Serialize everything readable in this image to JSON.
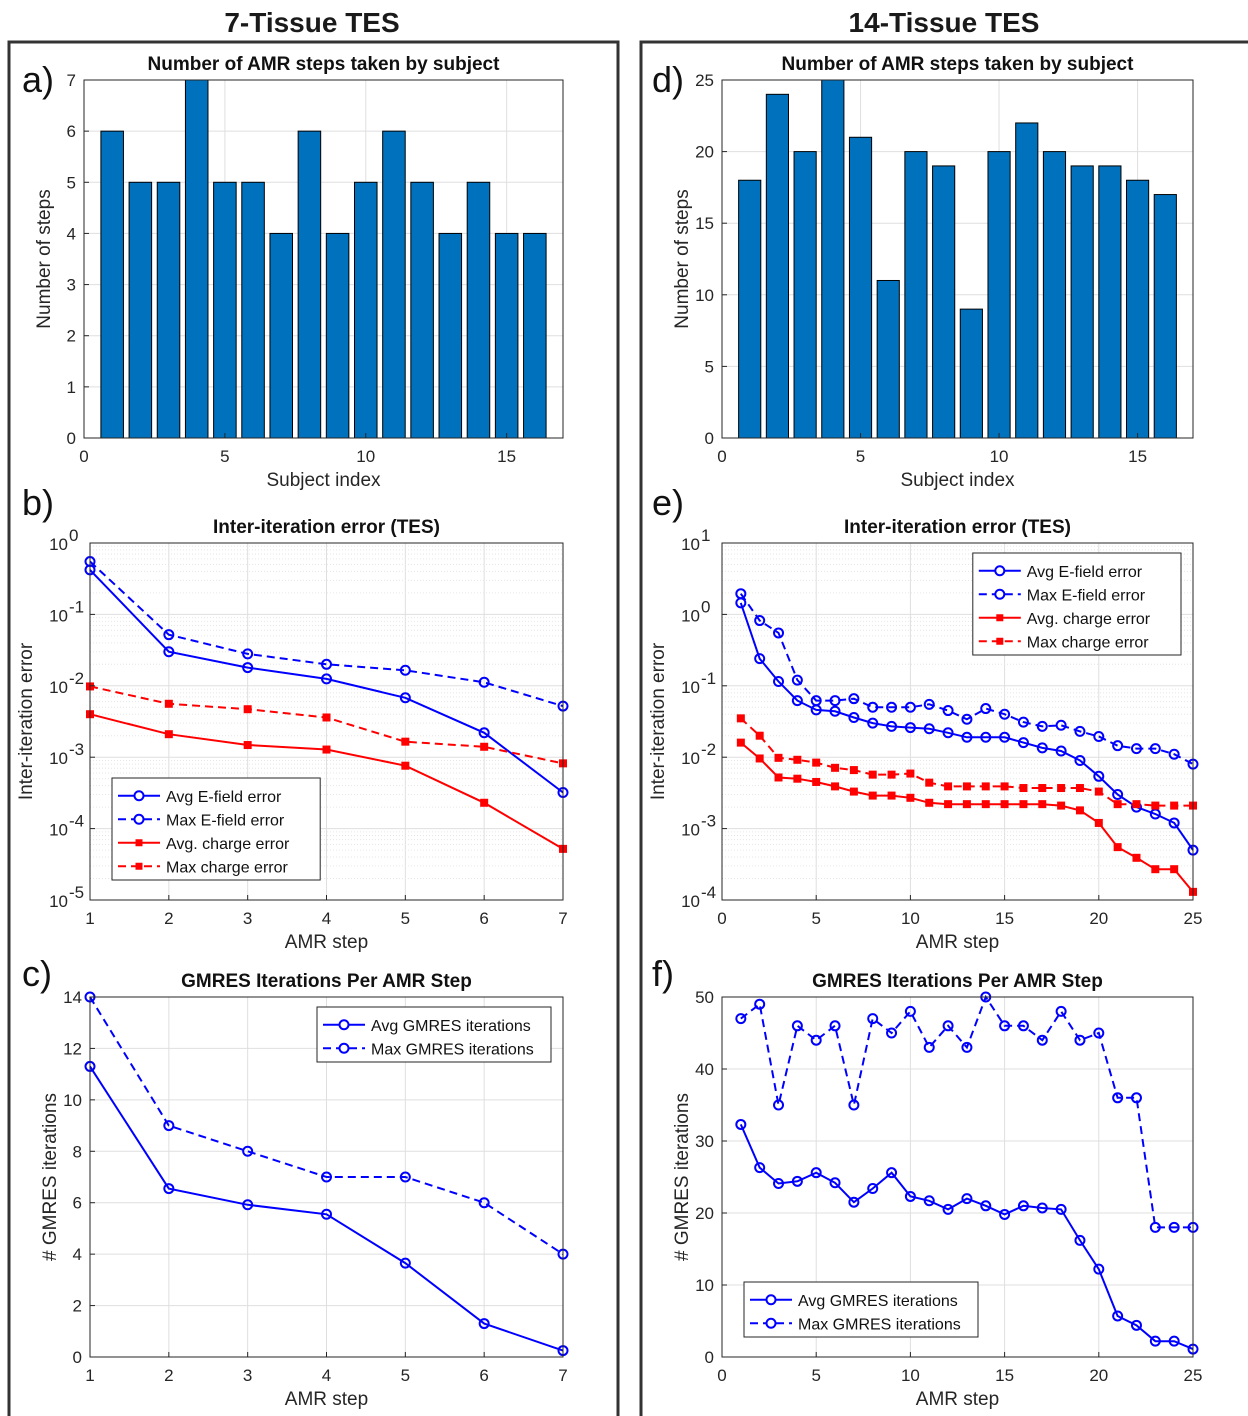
{
  "columns": [
    {
      "title": "7-Tissue TES"
    },
    {
      "title": "14-Tissue TES"
    }
  ],
  "colors": {
    "bar": "#0072bd",
    "blue": "#0000ff",
    "red": "#ff0000",
    "grid": "#dfdfdf",
    "axis": "#262626",
    "frame": "#333333"
  },
  "chart_data": [
    {
      "panel": "a)",
      "type": "bar",
      "title": "Number of AMR steps taken by subject",
      "xlabel": "Subject index",
      "ylabel": "Number of steps",
      "x": [
        1,
        2,
        3,
        4,
        5,
        6,
        7,
        8,
        9,
        10,
        11,
        12,
        13,
        14,
        15,
        16
      ],
      "values": [
        6,
        5,
        5,
        7,
        5,
        5,
        4,
        6,
        4,
        5,
        6,
        5,
        4,
        5,
        4,
        4
      ],
      "xlim": [
        0,
        17
      ],
      "ylim": [
        0,
        7
      ],
      "xticks": [
        0,
        5,
        10,
        15
      ],
      "yticks": [
        0,
        1,
        2,
        3,
        4,
        5,
        6,
        7
      ],
      "yscale": "linear",
      "grid": true
    },
    {
      "panel": "b)",
      "type": "line",
      "title": "Inter-iteration error (TES)",
      "xlabel": "AMR step",
      "ylabel": "Inter-iteration error",
      "xlim": [
        1,
        7
      ],
      "ylim": [
        1e-05,
        1
      ],
      "xticks": [
        1,
        2,
        3,
        4,
        5,
        6,
        7
      ],
      "yticks": [
        1e-05,
        0.0001,
        0.001,
        0.01,
        0.1,
        1
      ],
      "ytick_exponents": [
        "-5",
        "-4",
        "-3",
        "-2",
        "-1",
        "0"
      ],
      "yscale": "log",
      "grid": true,
      "legend": "bottom-left",
      "series": [
        {
          "name": "Avg E-field error",
          "color": "#0000ff",
          "dash": false,
          "marker": "circle",
          "x": [
            1,
            2,
            3,
            4,
            5,
            6,
            7
          ],
          "values": [
            0.42,
            0.03,
            0.018,
            0.0125,
            0.0068,
            0.0022,
            0.00032
          ]
        },
        {
          "name": "Max E-field error",
          "color": "#0000ff",
          "dash": true,
          "marker": "circle",
          "x": [
            1,
            2,
            3,
            4,
            5,
            6,
            7
          ],
          "values": [
            0.55,
            0.052,
            0.028,
            0.02,
            0.0165,
            0.0112,
            0.0052
          ]
        },
        {
          "name": "Avg. charge error",
          "color": "#ff0000",
          "dash": false,
          "marker": "square",
          "x": [
            1,
            2,
            3,
            4,
            5,
            6,
            7
          ],
          "values": [
            0.004,
            0.0021,
            0.00148,
            0.00128,
            0.00076,
            0.00023,
            5.2e-05
          ]
        },
        {
          "name": "Max charge error",
          "color": "#ff0000",
          "dash": true,
          "marker": "square",
          "x": [
            1,
            2,
            3,
            4,
            5,
            6,
            7
          ],
          "values": [
            0.0098,
            0.0056,
            0.0047,
            0.0036,
            0.00165,
            0.0014,
            0.00082
          ]
        }
      ]
    },
    {
      "panel": "c)",
      "type": "line",
      "title": "GMRES Iterations Per AMR Step",
      "xlabel": "AMR step",
      "ylabel": "# GMRES iterations",
      "xlim": [
        1,
        7
      ],
      "ylim": [
        0,
        14
      ],
      "xticks": [
        1,
        2,
        3,
        4,
        5,
        6,
        7
      ],
      "yticks": [
        0,
        2,
        4,
        6,
        8,
        10,
        12,
        14
      ],
      "yscale": "linear",
      "grid": true,
      "legend": "top-right",
      "series": [
        {
          "name": "Avg GMRES iterations",
          "color": "#0000ff",
          "dash": false,
          "marker": "circle",
          "x": [
            1,
            2,
            3,
            4,
            5,
            6,
            7
          ],
          "values": [
            11.3,
            6.55,
            5.92,
            5.55,
            3.65,
            1.3,
            0.25
          ]
        },
        {
          "name": "Max GMRES iterations",
          "color": "#0000ff",
          "dash": true,
          "marker": "circle",
          "x": [
            1,
            2,
            3,
            4,
            5,
            6,
            7
          ],
          "values": [
            14,
            9,
            8,
            7,
            7,
            6,
            4
          ]
        }
      ]
    },
    {
      "panel": "d)",
      "type": "bar",
      "title": "Number of AMR steps taken by subject",
      "xlabel": "Subject index",
      "ylabel": "Number of steps",
      "x": [
        1,
        2,
        3,
        4,
        5,
        6,
        7,
        8,
        9,
        10,
        11,
        12,
        13,
        14,
        15,
        16
      ],
      "values": [
        18,
        24,
        20,
        25,
        21,
        11,
        20,
        19,
        9,
        20,
        22,
        20,
        19,
        19,
        18,
        17
      ],
      "xlim": [
        0,
        17
      ],
      "ylim": [
        0,
        25
      ],
      "xticks": [
        0,
        5,
        10,
        15
      ],
      "yticks": [
        0,
        5,
        10,
        15,
        20,
        25
      ],
      "yscale": "linear",
      "grid": true
    },
    {
      "panel": "e)",
      "type": "line",
      "title": "Inter-iteration error (TES)",
      "xlabel": "AMR step",
      "ylabel": "Inter-iteration error",
      "xlim": [
        0,
        25
      ],
      "ylim": [
        0.0001,
        10
      ],
      "xticks": [
        0,
        5,
        10,
        15,
        20,
        25
      ],
      "yticks": [
        0.0001,
        0.001,
        0.01,
        0.1,
        1,
        10
      ],
      "ytick_exponents": [
        "-4",
        "-3",
        "-2",
        "-1",
        "0",
        "1"
      ],
      "yscale": "log",
      "grid": true,
      "legend": "top-right",
      "series": [
        {
          "name": "Avg E-field error",
          "color": "#0000ff",
          "dash": false,
          "marker": "circle",
          "x": [
            1,
            2,
            3,
            4,
            5,
            6,
            7,
            8,
            9,
            10,
            11,
            12,
            13,
            14,
            15,
            16,
            17,
            18,
            19,
            20,
            21,
            22,
            23,
            24,
            25
          ],
          "values": [
            1.45,
            0.24,
            0.115,
            0.062,
            0.046,
            0.044,
            0.036,
            0.03,
            0.027,
            0.026,
            0.025,
            0.022,
            0.019,
            0.019,
            0.019,
            0.016,
            0.0135,
            0.0122,
            0.009,
            0.0054,
            0.003,
            0.002,
            0.0016,
            0.0012,
            0.0005
          ]
        },
        {
          "name": "Max E-field error",
          "color": "#0000ff",
          "dash": true,
          "marker": "circle",
          "x": [
            1,
            2,
            3,
            4,
            5,
            6,
            7,
            8,
            9,
            10,
            11,
            12,
            13,
            14,
            15,
            16,
            17,
            18,
            19,
            20,
            21,
            22,
            23,
            24,
            25
          ],
          "values": [
            1.95,
            0.82,
            0.55,
            0.12,
            0.062,
            0.062,
            0.066,
            0.05,
            0.05,
            0.05,
            0.055,
            0.045,
            0.034,
            0.048,
            0.04,
            0.031,
            0.027,
            0.028,
            0.023,
            0.0195,
            0.0145,
            0.0132,
            0.0132,
            0.011,
            0.008
          ]
        },
        {
          "name": "Avg. charge error",
          "color": "#ff0000",
          "dash": false,
          "marker": "square",
          "x": [
            1,
            2,
            3,
            4,
            5,
            6,
            7,
            8,
            9,
            10,
            11,
            12,
            13,
            14,
            15,
            16,
            17,
            18,
            19,
            20,
            21,
            22,
            23,
            24,
            25
          ],
          "values": [
            0.016,
            0.0096,
            0.0052,
            0.005,
            0.0045,
            0.0039,
            0.0033,
            0.0029,
            0.0029,
            0.0027,
            0.0023,
            0.0022,
            0.0022,
            0.0022,
            0.0022,
            0.0022,
            0.0022,
            0.0021,
            0.0018,
            0.0012,
            0.00055,
            0.00039,
            0.00027,
            0.00027,
            0.00013
          ]
        },
        {
          "name": "Max charge error",
          "color": "#ff0000",
          "dash": true,
          "marker": "square",
          "x": [
            1,
            2,
            3,
            4,
            5,
            6,
            7,
            8,
            9,
            10,
            11,
            12,
            13,
            14,
            15,
            16,
            17,
            18,
            19,
            20,
            21,
            22,
            23,
            24,
            25
          ],
          "values": [
            0.035,
            0.02,
            0.0098,
            0.0092,
            0.0084,
            0.0071,
            0.0066,
            0.0057,
            0.0057,
            0.0059,
            0.0044,
            0.0039,
            0.0039,
            0.0039,
            0.0039,
            0.0037,
            0.0037,
            0.0037,
            0.0037,
            0.0033,
            0.0022,
            0.0022,
            0.0021,
            0.0021,
            0.0021
          ]
        }
      ]
    },
    {
      "panel": "f)",
      "type": "line",
      "title": "GMRES Iterations Per AMR Step",
      "xlabel": "AMR step",
      "ylabel": "# GMRES iterations",
      "xlim": [
        0,
        25
      ],
      "ylim": [
        0,
        50
      ],
      "xticks": [
        0,
        5,
        10,
        15,
        20,
        25
      ],
      "yticks": [
        0,
        10,
        20,
        30,
        40,
        50
      ],
      "yscale": "linear",
      "grid": true,
      "legend": "bottom-left",
      "series": [
        {
          "name": "Avg GMRES iterations",
          "color": "#0000ff",
          "dash": false,
          "marker": "circle",
          "x": [
            1,
            2,
            3,
            4,
            5,
            6,
            7,
            8,
            9,
            10,
            11,
            12,
            13,
            14,
            15,
            16,
            17,
            18,
            19,
            20,
            21,
            22,
            23,
            24,
            25
          ],
          "values": [
            32.3,
            26.3,
            24.1,
            24.4,
            25.6,
            24.2,
            21.5,
            23.4,
            25.6,
            22.3,
            21.7,
            20.5,
            22,
            21,
            19.8,
            21,
            20.7,
            20.5,
            16.2,
            12.2,
            5.7,
            4.4,
            2.2,
            2.2,
            1.1
          ]
        },
        {
          "name": "Max GMRES iterations",
          "color": "#0000ff",
          "dash": true,
          "marker": "circle",
          "x": [
            1,
            2,
            3,
            4,
            5,
            6,
            7,
            8,
            9,
            10,
            11,
            12,
            13,
            14,
            15,
            16,
            17,
            18,
            19,
            20,
            21,
            22,
            23,
            24,
            25
          ],
          "values": [
            47,
            49,
            35,
            46,
            44,
            46,
            35,
            47,
            45,
            48,
            43,
            46,
            43,
            50,
            46,
            46,
            44,
            48,
            44,
            45,
            36,
            36,
            18,
            18,
            18
          ]
        }
      ]
    }
  ]
}
